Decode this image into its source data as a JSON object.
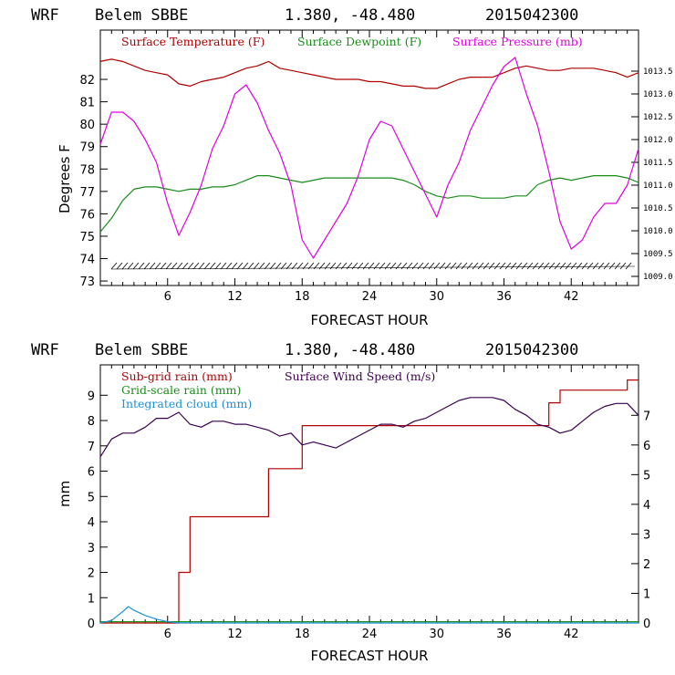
{
  "header_top": {
    "model": "WRF",
    "station": "Belem SBBE",
    "coords": "1.380, -48.480",
    "init": "2015042300"
  },
  "header_bottom": {
    "model": "WRF",
    "station": "Belem SBBE",
    "coords": "1.380, -48.480",
    "init": "2015042300"
  },
  "colors": {
    "temperature": "#b00000",
    "dewpoint": "#1a8c1a",
    "pressure": "#e000e0",
    "subgrid_rain": "#b00000",
    "gridscale_rain": "#1a8c1a",
    "cloud": "#1e90d6",
    "wind": "#3a0050",
    "wind_barbs": "#000000"
  },
  "chart_data": [
    {
      "type": "line",
      "legend": [
        "Surface Temperature (F)",
        "Surface Dewpoint (F)",
        "Surface Pressure (mb)"
      ],
      "xlabel": "FORECAST HOUR",
      "ylabel": "Degrees F",
      "xlim": [
        0,
        48
      ],
      "xticks": [
        6,
        12,
        18,
        24,
        30,
        36,
        42
      ],
      "ylim": [
        72.8,
        84.2
      ],
      "yticks": [
        73,
        74,
        75,
        76,
        77,
        78,
        79,
        80,
        81,
        82
      ],
      "y2lim": [
        1008.8,
        1014.4
      ],
      "y2ticks": [
        "1009.0",
        "1009.5",
        "1010.0",
        "1010.5",
        "1011.0",
        "1011.5",
        "1012.0",
        "1012.5",
        "1013.0",
        "1013.5"
      ],
      "series": [
        {
          "name": "Surface Temperature (F)",
          "axis": "left",
          "x": [
            0,
            1,
            2,
            3,
            4,
            5,
            6,
            7,
            8,
            9,
            10,
            11,
            12,
            13,
            14,
            15,
            16,
            17,
            18,
            19,
            20,
            21,
            22,
            23,
            24,
            25,
            26,
            27,
            28,
            29,
            30,
            31,
            32,
            33,
            34,
            35,
            36,
            37,
            38,
            39,
            40,
            41,
            42,
            43,
            44,
            45,
            46,
            47,
            48
          ],
          "y": [
            82.8,
            82.9,
            82.8,
            82.6,
            82.4,
            82.3,
            82.2,
            81.8,
            81.7,
            81.9,
            82.0,
            82.1,
            82.3,
            82.5,
            82.6,
            82.8,
            82.5,
            82.4,
            82.3,
            82.2,
            82.1,
            82.0,
            82.0,
            82.0,
            81.9,
            81.9,
            81.8,
            81.7,
            81.7,
            81.6,
            81.6,
            81.8,
            82.0,
            82.1,
            82.1,
            82.1,
            82.3,
            82.5,
            82.6,
            82.5,
            82.4,
            82.4,
            82.5,
            82.5,
            82.5,
            82.4,
            82.3,
            82.1,
            82.3
          ]
        },
        {
          "name": "Surface Dewpoint (F)",
          "axis": "left",
          "x": [
            0,
            1,
            2,
            3,
            4,
            5,
            6,
            7,
            8,
            9,
            10,
            11,
            12,
            13,
            14,
            15,
            16,
            17,
            18,
            19,
            20,
            21,
            22,
            23,
            24,
            25,
            26,
            27,
            28,
            29,
            30,
            31,
            32,
            33,
            34,
            35,
            36,
            37,
            38,
            39,
            40,
            41,
            42,
            43,
            44,
            45,
            46,
            47,
            48
          ],
          "y": [
            75.2,
            75.8,
            76.6,
            77.1,
            77.2,
            77.2,
            77.1,
            77.0,
            77.1,
            77.1,
            77.2,
            77.2,
            77.3,
            77.5,
            77.7,
            77.7,
            77.6,
            77.5,
            77.4,
            77.5,
            77.6,
            77.6,
            77.6,
            77.6,
            77.6,
            77.6,
            77.6,
            77.5,
            77.3,
            77.0,
            76.8,
            76.7,
            76.8,
            76.8,
            76.7,
            76.7,
            76.7,
            76.8,
            76.8,
            77.3,
            77.5,
            77.6,
            77.5,
            77.6,
            77.7,
            77.7,
            77.7,
            77.6,
            77.4
          ]
        },
        {
          "name": "Surface Pressure (mb)",
          "axis": "right",
          "x": [
            0,
            1,
            2,
            3,
            4,
            5,
            6,
            7,
            8,
            9,
            10,
            11,
            12,
            13,
            14,
            15,
            16,
            17,
            18,
            19,
            20,
            21,
            22,
            23,
            24,
            25,
            26,
            27,
            28,
            29,
            30,
            31,
            32,
            33,
            34,
            35,
            36,
            37,
            38,
            39,
            40,
            41,
            42,
            43,
            44,
            45,
            46,
            47,
            48
          ],
          "y": [
            1011.9,
            1012.6,
            1012.6,
            1012.4,
            1012.0,
            1011.5,
            1010.6,
            1009.9,
            1010.4,
            1011.0,
            1011.8,
            1012.3,
            1013.0,
            1013.2,
            1012.8,
            1012.2,
            1011.7,
            1011.0,
            1009.8,
            1009.4,
            1009.8,
            1010.2,
            1010.6,
            1011.2,
            1012.0,
            1012.4,
            1012.3,
            1011.8,
            1011.3,
            1010.8,
            1010.3,
            1011.0,
            1011.5,
            1012.2,
            1012.7,
            1013.2,
            1013.6,
            1013.8,
            1013.0,
            1012.3,
            1011.3,
            1010.2,
            1009.6,
            1009.8,
            1010.3,
            1010.6,
            1010.6,
            1011.0,
            1011.8
          ]
        }
      ],
      "wind_barbs": true
    },
    {
      "type": "line",
      "legend": [
        "Sub-grid rain (mm)",
        "Surface Wind Speed (m/s)",
        "Grid-scale rain (mm)",
        "Integrated cloud (mm)"
      ],
      "xlabel": "FORECAST HOUR",
      "ylabel": "mm",
      "xlim": [
        0,
        48
      ],
      "xticks": [
        6,
        12,
        18,
        24,
        30,
        36,
        42
      ],
      "ylim": [
        0,
        10.2
      ],
      "yticks": [
        0,
        1,
        2,
        3,
        4,
        5,
        6,
        7,
        8,
        9
      ],
      "y2lim": [
        0,
        8.7
      ],
      "y2ticks": [
        0,
        1,
        2,
        3,
        4,
        5,
        6,
        7
      ],
      "series": [
        {
          "name": "Sub-grid rain (mm)",
          "axis": "left",
          "step": true,
          "x": [
            0,
            7,
            7,
            8,
            8,
            15,
            15,
            18,
            18,
            40,
            40,
            41,
            41,
            47,
            47,
            48
          ],
          "y": [
            0,
            0,
            2.0,
            2.0,
            4.2,
            4.2,
            6.1,
            6.1,
            7.8,
            7.8,
            8.7,
            8.7,
            9.2,
            9.2,
            9.6,
            9.6
          ]
        },
        {
          "name": "Surface Wind Speed (m/s)",
          "axis": "right",
          "x": [
            0,
            1,
            2,
            3,
            4,
            5,
            6,
            7,
            8,
            9,
            10,
            11,
            12,
            13,
            14,
            15,
            16,
            17,
            18,
            19,
            20,
            21,
            22,
            23,
            24,
            25,
            26,
            27,
            28,
            29,
            30,
            31,
            32,
            33,
            34,
            35,
            36,
            37,
            38,
            39,
            40,
            41,
            42,
            43,
            44,
            45,
            46,
            47,
            48
          ],
          "y": [
            5.6,
            6.2,
            6.4,
            6.4,
            6.6,
            6.9,
            6.9,
            7.1,
            6.7,
            6.6,
            6.8,
            6.8,
            6.7,
            6.7,
            6.6,
            6.5,
            6.3,
            6.4,
            6.0,
            6.1,
            6.0,
            5.9,
            6.1,
            6.3,
            6.5,
            6.7,
            6.7,
            6.6,
            6.8,
            6.9,
            7.1,
            7.3,
            7.5,
            7.6,
            7.6,
            7.6,
            7.5,
            7.2,
            7.0,
            6.7,
            6.6,
            6.4,
            6.5,
            6.8,
            7.1,
            7.3,
            7.4,
            7.4,
            7.0
          ]
        },
        {
          "name": "Grid-scale rain (mm)",
          "axis": "left",
          "x": [
            0,
            48
          ],
          "y": [
            0.05,
            0.05
          ]
        },
        {
          "name": "Integrated cloud (mm)",
          "axis": "left",
          "x": [
            0,
            1,
            2,
            2.5,
            3,
            4,
            5,
            6,
            7,
            48
          ],
          "y": [
            0,
            0.1,
            0.45,
            0.65,
            0.5,
            0.3,
            0.15,
            0.05,
            0,
            0
          ]
        }
      ]
    }
  ]
}
